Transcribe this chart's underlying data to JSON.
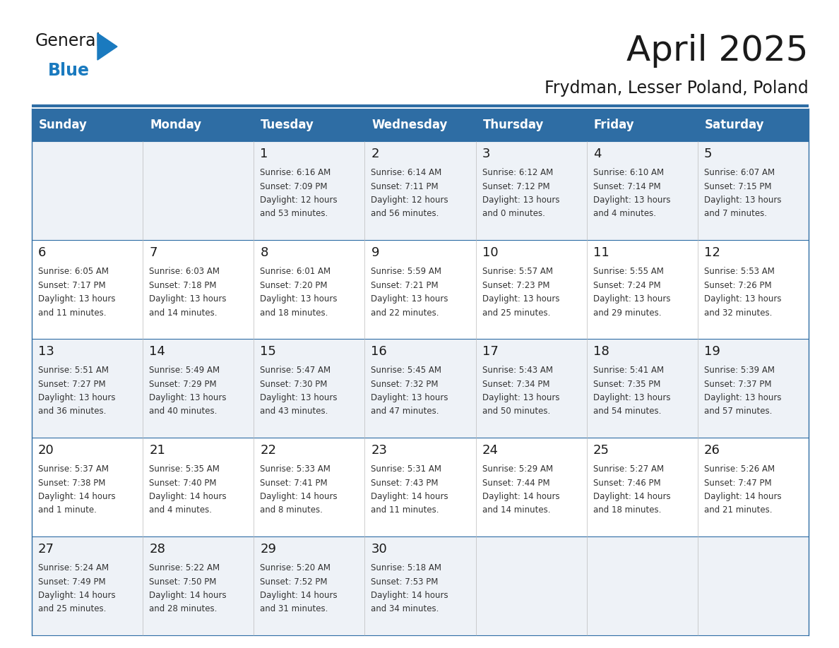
{
  "title": "April 2025",
  "subtitle": "Frydman, Lesser Poland, Poland",
  "days_of_week": [
    "Sunday",
    "Monday",
    "Tuesday",
    "Wednesday",
    "Thursday",
    "Friday",
    "Saturday"
  ],
  "header_bg": "#2e6da4",
  "header_text": "#ffffff",
  "row_bg_light": "#eef2f7",
  "row_bg_white": "#ffffff",
  "border_color": "#2e6da4",
  "day_num_color": "#1a1a1a",
  "cell_text_color": "#333333",
  "weeks": [
    [
      {
        "day": "",
        "info": ""
      },
      {
        "day": "",
        "info": ""
      },
      {
        "day": "1",
        "info": "Sunrise: 6:16 AM\nSunset: 7:09 PM\nDaylight: 12 hours\nand 53 minutes."
      },
      {
        "day": "2",
        "info": "Sunrise: 6:14 AM\nSunset: 7:11 PM\nDaylight: 12 hours\nand 56 minutes."
      },
      {
        "day": "3",
        "info": "Sunrise: 6:12 AM\nSunset: 7:12 PM\nDaylight: 13 hours\nand 0 minutes."
      },
      {
        "day": "4",
        "info": "Sunrise: 6:10 AM\nSunset: 7:14 PM\nDaylight: 13 hours\nand 4 minutes."
      },
      {
        "day": "5",
        "info": "Sunrise: 6:07 AM\nSunset: 7:15 PM\nDaylight: 13 hours\nand 7 minutes."
      }
    ],
    [
      {
        "day": "6",
        "info": "Sunrise: 6:05 AM\nSunset: 7:17 PM\nDaylight: 13 hours\nand 11 minutes."
      },
      {
        "day": "7",
        "info": "Sunrise: 6:03 AM\nSunset: 7:18 PM\nDaylight: 13 hours\nand 14 minutes."
      },
      {
        "day": "8",
        "info": "Sunrise: 6:01 AM\nSunset: 7:20 PM\nDaylight: 13 hours\nand 18 minutes."
      },
      {
        "day": "9",
        "info": "Sunrise: 5:59 AM\nSunset: 7:21 PM\nDaylight: 13 hours\nand 22 minutes."
      },
      {
        "day": "10",
        "info": "Sunrise: 5:57 AM\nSunset: 7:23 PM\nDaylight: 13 hours\nand 25 minutes."
      },
      {
        "day": "11",
        "info": "Sunrise: 5:55 AM\nSunset: 7:24 PM\nDaylight: 13 hours\nand 29 minutes."
      },
      {
        "day": "12",
        "info": "Sunrise: 5:53 AM\nSunset: 7:26 PM\nDaylight: 13 hours\nand 32 minutes."
      }
    ],
    [
      {
        "day": "13",
        "info": "Sunrise: 5:51 AM\nSunset: 7:27 PM\nDaylight: 13 hours\nand 36 minutes."
      },
      {
        "day": "14",
        "info": "Sunrise: 5:49 AM\nSunset: 7:29 PM\nDaylight: 13 hours\nand 40 minutes."
      },
      {
        "day": "15",
        "info": "Sunrise: 5:47 AM\nSunset: 7:30 PM\nDaylight: 13 hours\nand 43 minutes."
      },
      {
        "day": "16",
        "info": "Sunrise: 5:45 AM\nSunset: 7:32 PM\nDaylight: 13 hours\nand 47 minutes."
      },
      {
        "day": "17",
        "info": "Sunrise: 5:43 AM\nSunset: 7:34 PM\nDaylight: 13 hours\nand 50 minutes."
      },
      {
        "day": "18",
        "info": "Sunrise: 5:41 AM\nSunset: 7:35 PM\nDaylight: 13 hours\nand 54 minutes."
      },
      {
        "day": "19",
        "info": "Sunrise: 5:39 AM\nSunset: 7:37 PM\nDaylight: 13 hours\nand 57 minutes."
      }
    ],
    [
      {
        "day": "20",
        "info": "Sunrise: 5:37 AM\nSunset: 7:38 PM\nDaylight: 14 hours\nand 1 minute."
      },
      {
        "day": "21",
        "info": "Sunrise: 5:35 AM\nSunset: 7:40 PM\nDaylight: 14 hours\nand 4 minutes."
      },
      {
        "day": "22",
        "info": "Sunrise: 5:33 AM\nSunset: 7:41 PM\nDaylight: 14 hours\nand 8 minutes."
      },
      {
        "day": "23",
        "info": "Sunrise: 5:31 AM\nSunset: 7:43 PM\nDaylight: 14 hours\nand 11 minutes."
      },
      {
        "day": "24",
        "info": "Sunrise: 5:29 AM\nSunset: 7:44 PM\nDaylight: 14 hours\nand 14 minutes."
      },
      {
        "day": "25",
        "info": "Sunrise: 5:27 AM\nSunset: 7:46 PM\nDaylight: 14 hours\nand 18 minutes."
      },
      {
        "day": "26",
        "info": "Sunrise: 5:26 AM\nSunset: 7:47 PM\nDaylight: 14 hours\nand 21 minutes."
      }
    ],
    [
      {
        "day": "27",
        "info": "Sunrise: 5:24 AM\nSunset: 7:49 PM\nDaylight: 14 hours\nand 25 minutes."
      },
      {
        "day": "28",
        "info": "Sunrise: 5:22 AM\nSunset: 7:50 PM\nDaylight: 14 hours\nand 28 minutes."
      },
      {
        "day": "29",
        "info": "Sunrise: 5:20 AM\nSunset: 7:52 PM\nDaylight: 14 hours\nand 31 minutes."
      },
      {
        "day": "30",
        "info": "Sunrise: 5:18 AM\nSunset: 7:53 PM\nDaylight: 14 hours\nand 34 minutes."
      },
      {
        "day": "",
        "info": ""
      },
      {
        "day": "",
        "info": ""
      },
      {
        "day": "",
        "info": ""
      }
    ]
  ],
  "logo_general_color": "#1a1a1a",
  "logo_blue_color": "#1a7abf",
  "logo_triangle_color": "#1a7abf",
  "title_fontsize": 36,
  "subtitle_fontsize": 17,
  "header_fontsize": 12,
  "day_num_fontsize": 13,
  "cell_fontsize": 8.5
}
